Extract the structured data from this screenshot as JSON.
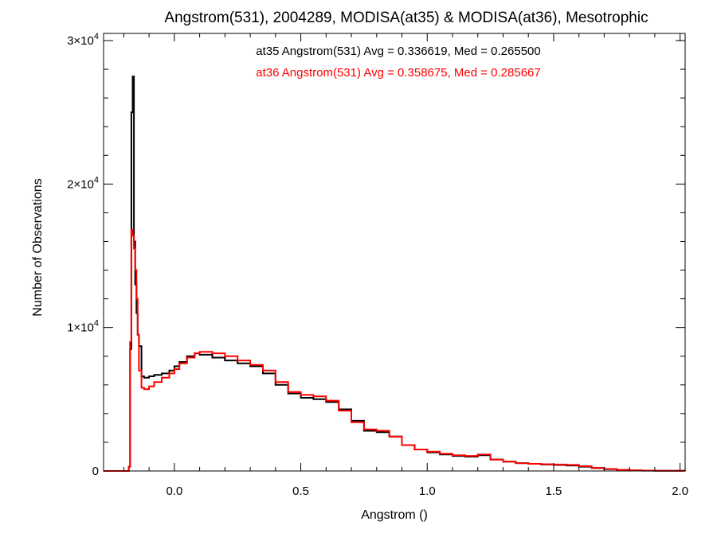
{
  "chart_data": {
    "type": "line",
    "step": true,
    "title": "Angstrom(531), 2004289, MODISA(at35) & MODISA(at36), Mesotrophic",
    "xlabel": "Angstrom ()",
    "ylabel": "Number of Observations",
    "xlim": [
      -0.28,
      2.02
    ],
    "ylim": [
      0,
      30500
    ],
    "x_ticks": [
      {
        "value": 0.0,
        "label": "0.0"
      },
      {
        "value": 0.5,
        "label": "0.5"
      },
      {
        "value": 1.0,
        "label": "1.0"
      },
      {
        "value": 1.5,
        "label": "1.5"
      },
      {
        "value": 2.0,
        "label": "2.0"
      }
    ],
    "y_ticks": [
      {
        "value": 0,
        "mant": "0",
        "exp": ""
      },
      {
        "value": 10000,
        "mant": "1×10",
        "exp": "4"
      },
      {
        "value": 20000,
        "mant": "2×10",
        "exp": "4"
      },
      {
        "value": 30000,
        "mant": "3×10",
        "exp": "4"
      }
    ],
    "annotations": [
      {
        "text": "at35 Angstrom(531) Avg = 0.336619, Med = 0.265500",
        "color": "#000000"
      },
      {
        "text": "at36 Angstrom(531) Avg = 0.358675, Med = 0.285667",
        "color": "#ff0000"
      }
    ],
    "series": [
      {
        "color": "#000000",
        "points": [
          [
            -0.28,
            0
          ],
          [
            -0.19,
            0
          ],
          [
            -0.18,
            300
          ],
          [
            -0.175,
            8500
          ],
          [
            -0.17,
            25000
          ],
          [
            -0.165,
            27500
          ],
          [
            -0.16,
            16000
          ],
          [
            -0.155,
            13000
          ],
          [
            -0.15,
            11000
          ],
          [
            -0.145,
            9500
          ],
          [
            -0.14,
            8700
          ],
          [
            -0.13,
            6600
          ],
          [
            -0.12,
            6500
          ],
          [
            -0.1,
            6600
          ],
          [
            -0.08,
            6700
          ],
          [
            -0.05,
            6800
          ],
          [
            -0.02,
            7000
          ],
          [
            0.0,
            7300
          ],
          [
            0.02,
            7600
          ],
          [
            0.05,
            8000
          ],
          [
            0.08,
            8200
          ],
          [
            0.1,
            8100
          ],
          [
            0.15,
            7900
          ],
          [
            0.2,
            7700
          ],
          [
            0.25,
            7500
          ],
          [
            0.3,
            7300
          ],
          [
            0.35,
            6800
          ],
          [
            0.4,
            6000
          ],
          [
            0.45,
            5400
          ],
          [
            0.5,
            5100
          ],
          [
            0.55,
            5000
          ],
          [
            0.6,
            4800
          ],
          [
            0.65,
            4300
          ],
          [
            0.7,
            3500
          ],
          [
            0.75,
            2800
          ],
          [
            0.8,
            2700
          ],
          [
            0.85,
            2400
          ],
          [
            0.9,
            1800
          ],
          [
            0.95,
            1500
          ],
          [
            1.0,
            1300
          ],
          [
            1.05,
            1150
          ],
          [
            1.1,
            1050
          ],
          [
            1.15,
            1000
          ],
          [
            1.2,
            1100
          ],
          [
            1.25,
            800
          ],
          [
            1.3,
            650
          ],
          [
            1.35,
            550
          ],
          [
            1.4,
            500
          ],
          [
            1.45,
            450
          ],
          [
            1.5,
            420
          ],
          [
            1.55,
            380
          ],
          [
            1.6,
            300
          ],
          [
            1.65,
            200
          ],
          [
            1.7,
            130
          ],
          [
            1.75,
            70
          ],
          [
            1.8,
            40
          ],
          [
            1.85,
            20
          ],
          [
            1.9,
            10
          ],
          [
            2.02,
            0
          ]
        ]
      },
      {
        "color": "#ff0000",
        "points": [
          [
            -0.28,
            0
          ],
          [
            -0.19,
            0
          ],
          [
            -0.18,
            300
          ],
          [
            -0.175,
            9000
          ],
          [
            -0.17,
            16800
          ],
          [
            -0.165,
            16400
          ],
          [
            -0.16,
            15500
          ],
          [
            -0.155,
            14000
          ],
          [
            -0.15,
            12000
          ],
          [
            -0.145,
            9500
          ],
          [
            -0.14,
            7000
          ],
          [
            -0.13,
            5800
          ],
          [
            -0.12,
            5700
          ],
          [
            -0.1,
            5900
          ],
          [
            -0.08,
            6200
          ],
          [
            -0.05,
            6500
          ],
          [
            -0.02,
            6800
          ],
          [
            0.0,
            7100
          ],
          [
            0.02,
            7500
          ],
          [
            0.05,
            7900
          ],
          [
            0.08,
            8200
          ],
          [
            0.1,
            8300
          ],
          [
            0.15,
            8200
          ],
          [
            0.2,
            8000
          ],
          [
            0.25,
            7700
          ],
          [
            0.3,
            7400
          ],
          [
            0.35,
            7000
          ],
          [
            0.4,
            6200
          ],
          [
            0.45,
            5500
          ],
          [
            0.5,
            5300
          ],
          [
            0.55,
            5200
          ],
          [
            0.6,
            4900
          ],
          [
            0.65,
            4200
          ],
          [
            0.7,
            3400
          ],
          [
            0.75,
            2900
          ],
          [
            0.8,
            2800
          ],
          [
            0.85,
            2400
          ],
          [
            0.9,
            1800
          ],
          [
            0.95,
            1500
          ],
          [
            1.0,
            1350
          ],
          [
            1.05,
            1200
          ],
          [
            1.1,
            1100
          ],
          [
            1.15,
            1050
          ],
          [
            1.2,
            1150
          ],
          [
            1.25,
            800
          ],
          [
            1.3,
            650
          ],
          [
            1.35,
            550
          ],
          [
            1.4,
            500
          ],
          [
            1.45,
            470
          ],
          [
            1.5,
            450
          ],
          [
            1.55,
            420
          ],
          [
            1.6,
            330
          ],
          [
            1.65,
            220
          ],
          [
            1.7,
            140
          ],
          [
            1.75,
            80
          ],
          [
            1.8,
            45
          ],
          [
            1.85,
            25
          ],
          [
            1.9,
            10
          ],
          [
            2.02,
            0
          ]
        ]
      }
    ]
  }
}
